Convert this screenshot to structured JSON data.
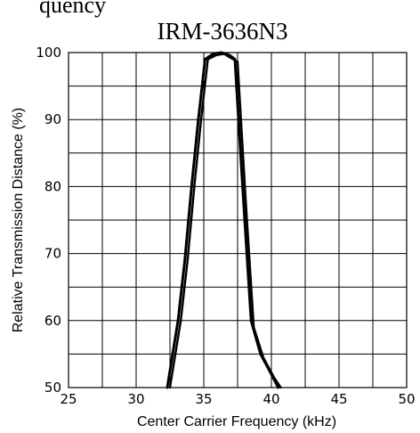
{
  "header": {
    "partial_text": "quency"
  },
  "chart_data": {
    "type": "line",
    "title": "IRM-3636N3",
    "xlabel": "Center Carrier Frequency  (kHz)",
    "ylabel": "Relative Transmission Distance (%)",
    "xlim": [
      25,
      50
    ],
    "ylim": [
      50,
      100
    ],
    "x_ticks": [
      25,
      30,
      35,
      40,
      45,
      50
    ],
    "y_ticks": [
      50,
      60,
      70,
      80,
      90,
      100
    ],
    "x_tick_labels": [
      "25",
      "30",
      "35",
      "40",
      "45",
      "50"
    ],
    "y_tick_labels": [
      "50",
      "60",
      "70",
      "80",
      "90",
      "100"
    ],
    "grid": true,
    "series": [
      {
        "x": [
          32.3,
          32.7,
          33.1,
          33.6,
          34.1,
          34.6,
          35.1,
          35.7,
          36.3,
          36.9,
          37.3,
          37.9,
          38.5,
          39.2,
          40.0,
          40.5
        ],
        "y": [
          50,
          55,
          60,
          69,
          80,
          90,
          99,
          99.8,
          100,
          99.6,
          99,
          79,
          60,
          55,
          52,
          50
        ]
      },
      {
        "x": [
          32.5,
          32.9,
          33.3,
          33.8,
          34.3,
          34.8,
          35.3,
          35.9,
          36.5,
          37.0,
          37.5,
          38.1,
          38.7,
          39.4,
          40.2,
          40.7
        ],
        "y": [
          50,
          55,
          60,
          69,
          80,
          90,
          99,
          99.6,
          99.8,
          99.2,
          98.6,
          78,
          59,
          54.5,
          51.5,
          50
        ]
      }
    ]
  }
}
